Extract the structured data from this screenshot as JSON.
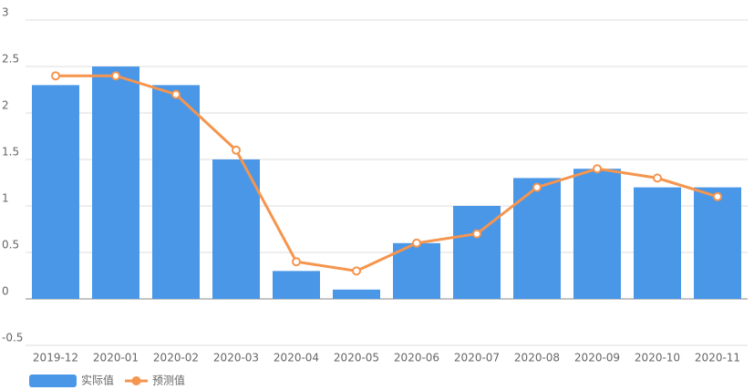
{
  "chart_data": {
    "type": "bar-line",
    "categories": [
      "2019-12",
      "2020-01",
      "2020-02",
      "2020-03",
      "2020-04",
      "2020-05",
      "2020-06",
      "2020-07",
      "2020-08",
      "2020-09",
      "2020-10",
      "2020-11"
    ],
    "series": [
      {
        "name": "实际值",
        "type": "bar",
        "color": "#4a97e8",
        "values": [
          2.3,
          2.5,
          2.3,
          1.5,
          0.3,
          0.1,
          0.6,
          1.0,
          1.3,
          1.4,
          1.2,
          1.2
        ]
      },
      {
        "name": "预测值",
        "type": "line",
        "color": "#f5954e",
        "values": [
          2.4,
          2.4,
          2.2,
          1.6,
          0.4,
          0.3,
          0.6,
          0.7,
          1.2,
          1.4,
          1.3,
          1.1
        ]
      }
    ],
    "ylim": [
      -0.5,
      3
    ],
    "yticks": [
      -0.5,
      0,
      0.5,
      1,
      1.5,
      2,
      2.5,
      3
    ],
    "grid": true
  }
}
